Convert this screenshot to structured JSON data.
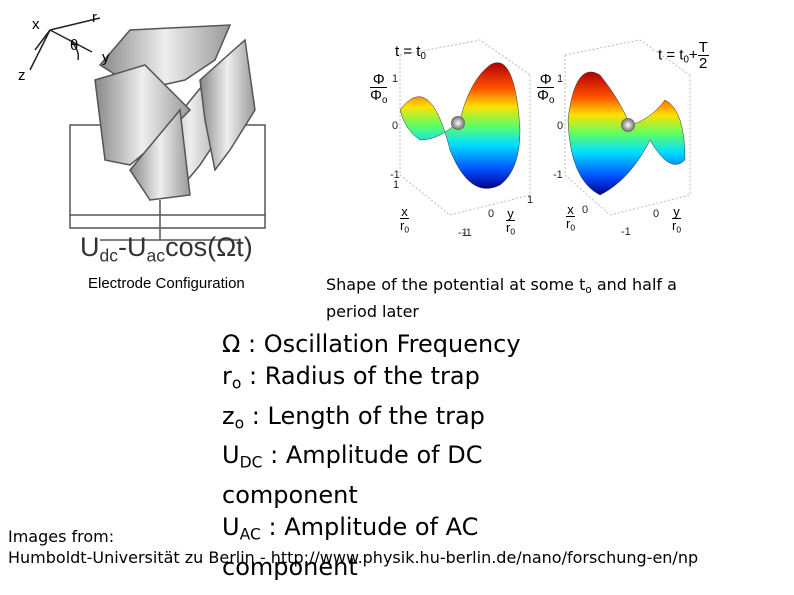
{
  "electrode_figure": {
    "axis_labels": [
      "x",
      "r",
      "θ",
      "y",
      "z"
    ],
    "voltage": {
      "u1": "U",
      "u1_sub": "dc",
      "u2": "-U",
      "u2_sub": "ac",
      "rest": "cos(Ωt)"
    },
    "caption": "Electrode Configuration"
  },
  "potential_figure": {
    "panels": [
      {
        "time": "t = t",
        "time_sub": "0",
        "phi": "Φ",
        "phi_den": "Φ",
        "phi_den_sub": "o",
        "z_ticks": [
          "1",
          "0",
          "-1"
        ],
        "x_label": "x",
        "x_den": "r",
        "x_den_sub": "0",
        "x_ticks": [
          "1",
          "-1"
        ],
        "y_label": "y",
        "y_den": "r",
        "y_den_sub": "0",
        "y_ticks": [
          "1",
          "0",
          "-1"
        ]
      },
      {
        "time": "t = t",
        "time_sub": "0",
        "time_suffix": "+",
        "frac_num": "T",
        "frac_den": "2",
        "phi": "Φ",
        "phi_den": "Φ",
        "phi_den_sub": "o",
        "z_ticks": [
          "1",
          "0",
          "-1"
        ],
        "x_label": "x",
        "x_den": "r",
        "x_den_sub": "0",
        "x_ticks": [
          "0"
        ],
        "y_label": "y",
        "y_den": "r",
        "y_den_sub": "0",
        "y_ticks": [
          "0",
          "-1"
        ]
      }
    ],
    "caption": {
      "text": "Shape of the potential at some t",
      "sub": "o",
      "rest": " and half a period later"
    }
  },
  "legend": [
    {
      "symbol": "Ω",
      "sub": "",
      "text": " : Oscillation Frequency"
    },
    {
      "symbol": "r",
      "sub": "o",
      "text": " : Radius of the trap"
    },
    {
      "symbol": "z",
      "sub": "o",
      "text": " : Length of the trap"
    },
    {
      "symbol": "U",
      "sub": "DC",
      "text": " : Amplitude of DC component"
    },
    {
      "symbol": "U",
      "sub": "AC",
      "text": " : Amplitude of AC component"
    }
  ],
  "source": {
    "label": "Images from:",
    "text": "Humboldt-Universität zu Berlin - http://www.physik.hu-berlin.de/nano/forschung-en/np"
  }
}
